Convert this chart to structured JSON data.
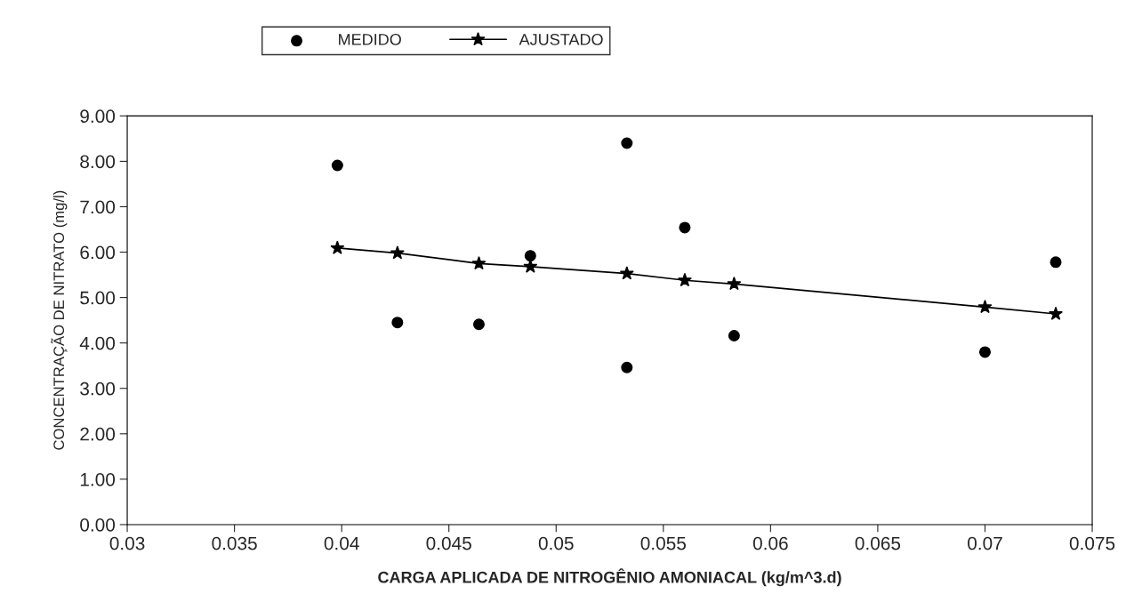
{
  "chart_data": {
    "type": "scatter",
    "xlabel": "CARGA APLICADA DE NITROGÊNIO AMONIACAL (kg/m^3.d)",
    "ylabel": "CONCENTRAÇÃO DE NITRATO (mg/l)",
    "series": [
      {
        "name": "MEDIDO",
        "marker": "circle",
        "color": "#000000",
        "x": [
          0.0398,
          0.0426,
          0.0464,
          0.0488,
          0.0533,
          0.0533,
          0.056,
          0.0583,
          0.07,
          0.0733
        ],
        "values": [
          7.91,
          4.45,
          4.41,
          5.92,
          8.4,
          3.46,
          6.54,
          4.16,
          3.8,
          5.78
        ]
      },
      {
        "name": "AJUSTADO",
        "type": "line",
        "marker": "star",
        "line_style": "solid",
        "color": "#000000",
        "x": [
          0.0398,
          0.0426,
          0.0464,
          0.0488,
          0.0533,
          0.056,
          0.0583,
          0.07,
          0.0733
        ],
        "values": [
          6.09,
          5.98,
          5.75,
          5.68,
          5.53,
          5.38,
          5.3,
          4.79,
          4.64
        ]
      }
    ],
    "xlim": [
      0.03,
      0.075
    ],
    "xticks": [
      0.03,
      0.035,
      0.04,
      0.045,
      0.05,
      0.055,
      0.06,
      0.065,
      0.07,
      0.075
    ],
    "ylim": [
      0,
      9
    ],
    "yticks": [
      {
        "value": 0,
        "label": "0.00"
      },
      {
        "value": 1,
        "label": "1.00"
      },
      {
        "value": 2,
        "label": "2.00"
      },
      {
        "value": 3,
        "label": "3.00"
      },
      {
        "value": 4,
        "label": "4.00"
      },
      {
        "value": 5,
        "label": "5.00"
      },
      {
        "value": 6,
        "label": "6.00"
      },
      {
        "value": 7,
        "label": "7.00"
      },
      {
        "value": 8,
        "label": "8.00"
      },
      {
        "value": 9,
        "label": "9.00"
      }
    ],
    "grid": false,
    "legend": "top"
  }
}
